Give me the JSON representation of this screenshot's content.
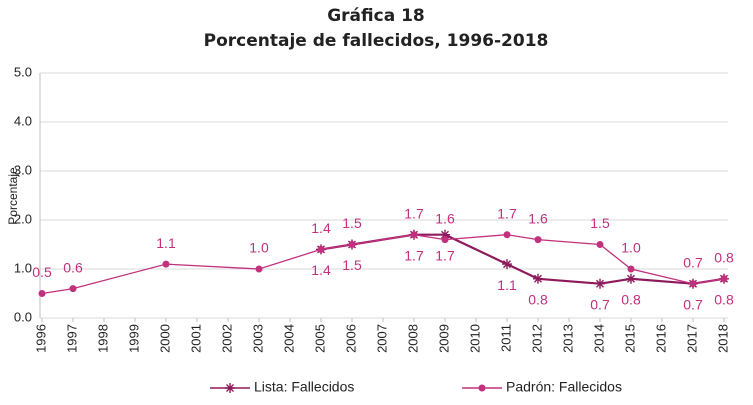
{
  "chart_data": {
    "type": "line",
    "title": "Gráfica 18",
    "subtitle": "Porcentaje de fallecidos, 1996-2018",
    "y_label": "Porcentaje",
    "xlim": [
      1996,
      2018
    ],
    "xticks": [
      1996,
      1997,
      1998,
      1999,
      2000,
      2001,
      2002,
      2003,
      2004,
      2005,
      2006,
      2007,
      2008,
      2009,
      2010,
      2011,
      2012,
      2013,
      2014,
      2015,
      2016,
      2017,
      2018
    ],
    "ylim": [
      0,
      5
    ],
    "yticks": [
      {
        "value": 0,
        "label": "0.0"
      },
      {
        "value": 1,
        "label": "1.0"
      },
      {
        "value": 2,
        "label": "2.0"
      },
      {
        "value": 3,
        "label": "3.0"
      },
      {
        "value": 4,
        "label": "4.0"
      },
      {
        "value": 5,
        "label": "5.0"
      }
    ],
    "grid": true,
    "legend": "bottom",
    "series": [
      {
        "name": "Lista: Fallecidos",
        "color": "#8e1a5c",
        "marker": "star",
        "label_side": "below",
        "x": [
          2005,
          2006,
          2008,
          2009,
          2011,
          2012,
          2014,
          2015,
          2017,
          2018
        ],
        "values": [
          1.4,
          1.5,
          1.7,
          1.7,
          1.1,
          0.8,
          0.7,
          0.8,
          0.7,
          0.8
        ],
        "value_labels": [
          "1.4",
          "1.5",
          "1.7",
          "1.7",
          "1.1",
          "0.8",
          "0.7",
          "0.8",
          "0.7",
          "0.8"
        ]
      },
      {
        "name": "Padrón: Fallecidos",
        "color": "#c2317d",
        "marker": "circle",
        "label_side": "above",
        "x": [
          1996,
          1997,
          2000,
          2003,
          2005,
          2006,
          2008,
          2009,
          2011,
          2012,
          2014,
          2015,
          2017,
          2018
        ],
        "values": [
          0.5,
          0.6,
          1.1,
          1,
          1.4,
          1.5,
          1.7,
          1.6,
          1.7,
          1.6,
          1.5,
          1,
          0.7,
          0.8
        ],
        "value_labels": [
          "0.5",
          "0.6",
          "1.1",
          "1.0",
          "1.4",
          "1.5",
          "1.7",
          "1.6",
          "1.7",
          "1.6",
          "1.5",
          "1.0",
          "0.7",
          "0.8"
        ]
      }
    ]
  }
}
